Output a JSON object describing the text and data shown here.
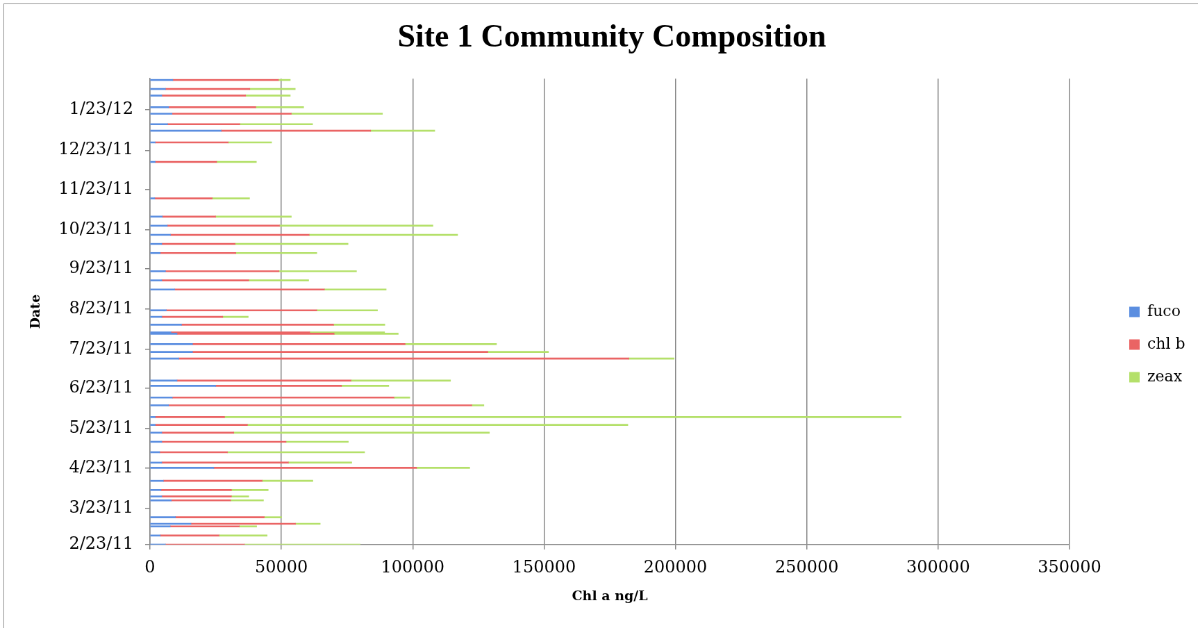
{
  "chart_data": {
    "type": "bar",
    "orientation": "horizontal",
    "stacked": true,
    "title": "Site 1 Community Composition",
    "xlabel": "Chl a ng/L",
    "ylabel": "Date",
    "x": [
      "2011-02-23",
      "2011-03-02",
      "2011-03-09",
      "2011-03-11",
      "2011-03-16",
      "2011-03-29",
      "2011-04-01",
      "2011-04-06",
      "2011-04-13",
      "2011-04-23",
      "2011-04-27",
      "2011-05-05",
      "2011-05-13",
      "2011-05-20",
      "2011-05-26",
      "2011-06-01",
      "2011-06-10",
      "2011-06-16",
      "2011-06-25",
      "2011-06-29",
      "2011-07-16",
      "2011-07-21",
      "2011-07-27",
      "2011-08-04",
      "2011-08-05",
      "2011-08-11",
      "2011-08-17",
      "2011-08-22",
      "2011-09-07",
      "2011-09-14",
      "2011-09-21",
      "2011-10-05",
      "2011-10-12",
      "2011-10-19",
      "2011-10-26",
      "2011-11-02",
      "2011-11-16",
      "2011-12-14",
      "2011-12-29",
      "2012-01-07",
      "2012-01-12",
      "2012-01-20",
      "2012-01-25",
      "2012-02-03",
      "2012-02-08",
      "2012-02-15"
    ],
    "series": [
      {
        "name": "fuco",
        "color": "#5b8ee0",
        "values": [
          5900,
          3900,
          7700,
          15600,
          9700,
          8100,
          4500,
          4200,
          5100,
          24300,
          4500,
          3700,
          4500,
          4500,
          2000,
          2000,
          7100,
          8500,
          25000,
          10300,
          11000,
          16200,
          16200,
          10300,
          8000,
          12000,
          4500,
          6200,
          9400,
          4500,
          5900,
          3900,
          4500,
          7800,
          6600,
          4700,
          1800,
          2000,
          2000,
          27100,
          6700,
          8400,
          7100,
          4500,
          5900,
          8700
        ]
      },
      {
        "name": "chl b",
        "color": "#ea6464",
        "values": [
          30100,
          22400,
          26300,
          39800,
          33800,
          22600,
          26500,
          26800,
          37600,
          77200,
          48200,
          25800,
          47300,
          27400,
          35100,
          26400,
          115400,
          84400,
          47900,
          66200,
          171300,
          112400,
          80900,
          59800,
          52800,
          57900,
          23200,
          57300,
          57000,
          33100,
          43200,
          28800,
          27900,
          52800,
          42700,
          20300,
          21900,
          23400,
          27800,
          56900,
          27500,
          45400,
          33200,
          31900,
          32100,
          40200
        ]
      },
      {
        "name": "zeax",
        "color": "#b4e06a",
        "values": [
          44000,
          18300,
          6600,
          9400,
          6600,
          12500,
          6600,
          14000,
          19300,
          20200,
          24100,
          52200,
          23700,
          97300,
          144800,
          257500,
          4600,
          6000,
          18000,
          37900,
          17200,
          23100,
          34800,
          24400,
          28500,
          19500,
          9700,
          23100,
          23500,
          22800,
          29500,
          30800,
          43000,
          56500,
          58400,
          28800,
          14200,
          15100,
          16500,
          24400,
          27700,
          34700,
          18200,
          17000,
          17300,
          4500
        ]
      }
    ],
    "xlim": [
      0,
      350000
    ],
    "xticks": [
      0,
      50000,
      100000,
      150000,
      200000,
      250000,
      300000,
      350000
    ],
    "ylim": [
      "2011-02-23",
      "2012-02-16"
    ],
    "yticks": [
      {
        "value": "2011-02-23",
        "label": "2/23/11"
      },
      {
        "value": "2011-03-23",
        "label": "3/23/11"
      },
      {
        "value": "2011-04-23",
        "label": "4/23/11"
      },
      {
        "value": "2011-05-23",
        "label": "5/23/11"
      },
      {
        "value": "2011-06-23",
        "label": "6/23/11"
      },
      {
        "value": "2011-07-23",
        "label": "7/23/11"
      },
      {
        "value": "2011-08-23",
        "label": "8/23/11"
      },
      {
        "value": "2011-09-23",
        "label": "9/23/11"
      },
      {
        "value": "2011-10-23",
        "label": "10/23/11"
      },
      {
        "value": "2011-11-23",
        "label": "11/23/11"
      },
      {
        "value": "2011-12-23",
        "label": "12/23/11"
      },
      {
        "value": "2012-01-23",
        "label": "1/23/12"
      }
    ],
    "grid": "x",
    "legend": "right"
  }
}
